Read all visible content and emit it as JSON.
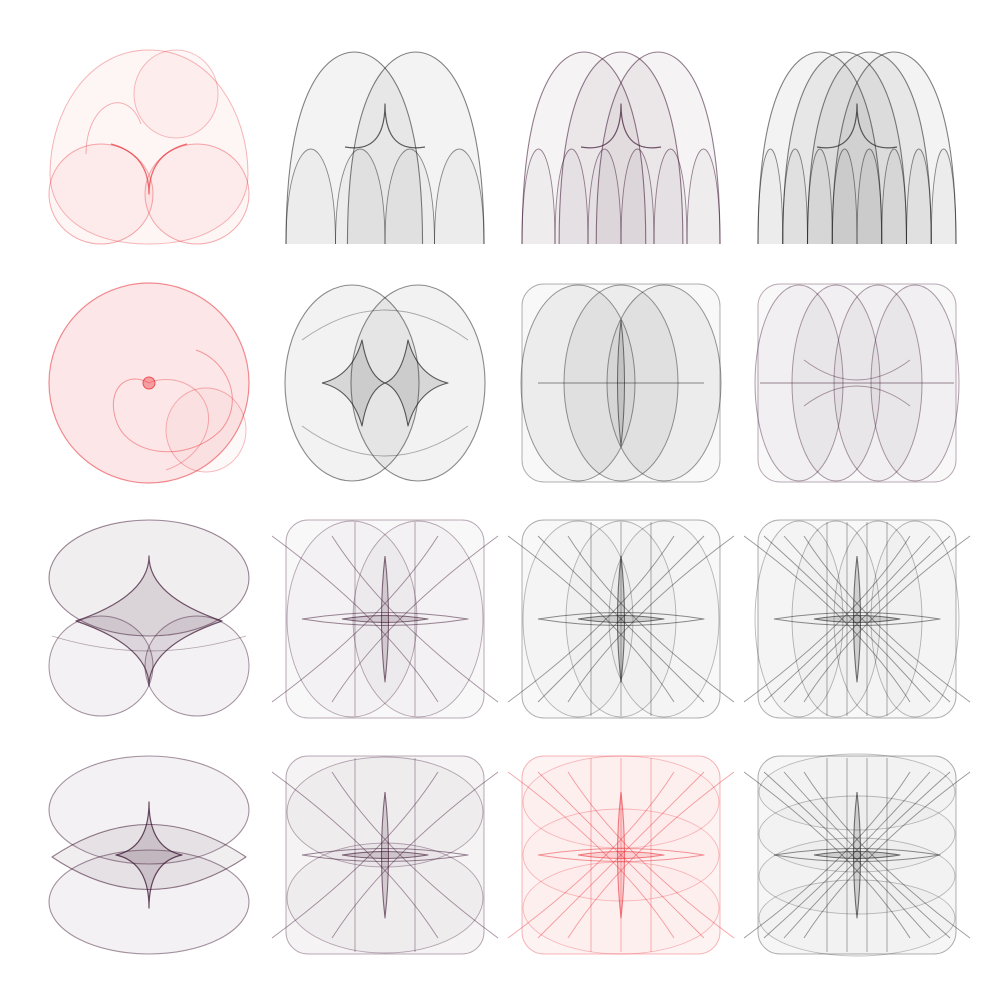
{
  "grid": {
    "rows": 4,
    "cols": 4
  },
  "palette": {
    "background": "#ffffff",
    "red": "#e8323a",
    "black": "#1c1c1c",
    "plum": "#3a1230"
  },
  "tiles": [
    {
      "row": 1,
      "col": 1,
      "color": "red",
      "shape": "heart-double-lobe"
    },
    {
      "row": 1,
      "col": 2,
      "color": "black",
      "shape": "double-arch"
    },
    {
      "row": 1,
      "col": 3,
      "color": "plum",
      "shape": "triple-arch"
    },
    {
      "row": 1,
      "col": 4,
      "color": "black",
      "shape": "quadruple-arch"
    },
    {
      "row": 2,
      "col": 1,
      "color": "red",
      "shape": "disc-spiral"
    },
    {
      "row": 2,
      "col": 2,
      "color": "black",
      "shape": "two-overlapping-ovals"
    },
    {
      "row": 2,
      "col": 3,
      "color": "black",
      "shape": "three-overlapping-ovals"
    },
    {
      "row": 2,
      "col": 4,
      "color": "plum",
      "shape": "four-overlapping-ovals"
    },
    {
      "row": 3,
      "col": 1,
      "color": "plum",
      "shape": "two-stacked-blobs"
    },
    {
      "row": 3,
      "col": 2,
      "color": "plum",
      "shape": "star-lattice-2"
    },
    {
      "row": 3,
      "col": 3,
      "color": "black",
      "shape": "star-lattice-3"
    },
    {
      "row": 3,
      "col": 4,
      "color": "black",
      "shape": "star-lattice-4"
    },
    {
      "row": 4,
      "col": 1,
      "color": "plum",
      "shape": "two-ovals-diamond"
    },
    {
      "row": 4,
      "col": 2,
      "color": "plum",
      "shape": "square-star-2"
    },
    {
      "row": 4,
      "col": 3,
      "color": "red",
      "shape": "square-star-3"
    },
    {
      "row": 4,
      "col": 4,
      "color": "black",
      "shape": "square-star-4"
    }
  ]
}
